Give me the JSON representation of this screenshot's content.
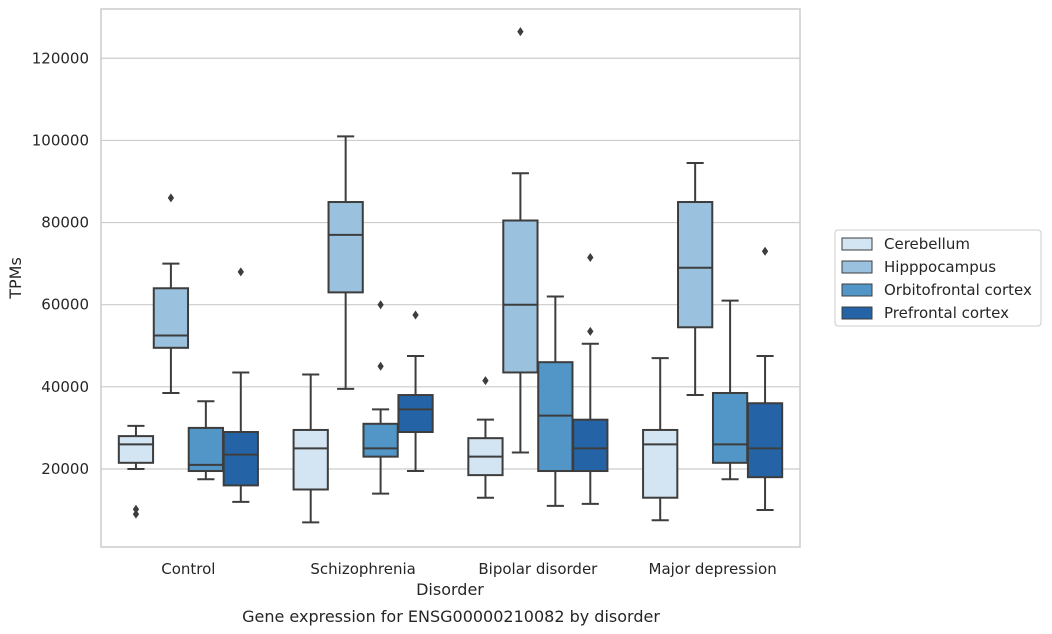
{
  "chart_data": {
    "type": "box",
    "xlabel": "Disorder",
    "ylabel": "TPMs",
    "caption": "Gene expression for ENSG00000210082 by disorder",
    "ylim": [
      1000,
      132000
    ],
    "yticks": [
      20000,
      40000,
      60000,
      80000,
      100000,
      120000
    ],
    "ytick_labels": [
      "20000",
      "40000",
      "60000",
      "80000",
      "100000",
      "120000"
    ],
    "grid": "horizontal",
    "legend_position": "right",
    "categories": [
      "Control",
      "Schizophrenia",
      "Bipolar disorder",
      "Major depression"
    ],
    "series": [
      {
        "name": "Cerebellum",
        "color": "#d3e4f3",
        "boxes": [
          {
            "whisker_low": 20000,
            "q1": 21500,
            "median": 26000,
            "q3": 28000,
            "whisker_high": 30500,
            "outliers": [
              9000,
              10200
            ]
          },
          {
            "whisker_low": 7000,
            "q1": 15000,
            "median": 25000,
            "q3": 29500,
            "whisker_high": 43000,
            "outliers": []
          },
          {
            "whisker_low": 13000,
            "q1": 18500,
            "median": 23000,
            "q3": 27500,
            "whisker_high": 32000,
            "outliers": [
              41500
            ]
          },
          {
            "whisker_low": 7500,
            "q1": 13000,
            "median": 26000,
            "q3": 29500,
            "whisker_high": 47000,
            "outliers": []
          }
        ]
      },
      {
        "name": "Hipppocampus",
        "color": "#9ac1de",
        "boxes": [
          {
            "whisker_low": 38500,
            "q1": 49500,
            "median": 52500,
            "q3": 64000,
            "whisker_high": 70000,
            "outliers": [
              86000
            ]
          },
          {
            "whisker_low": 39500,
            "q1": 63000,
            "median": 77000,
            "q3": 85000,
            "whisker_high": 101000,
            "outliers": []
          },
          {
            "whisker_low": 24000,
            "q1": 43500,
            "median": 60000,
            "q3": 80500,
            "whisker_high": 92000,
            "outliers": [
              126500
            ]
          },
          {
            "whisker_low": 38000,
            "q1": 54500,
            "median": 69000,
            "q3": 85000,
            "whisker_high": 94500,
            "outliers": []
          }
        ]
      },
      {
        "name": "Orbitofrontal cortex",
        "color": "#5296c7",
        "boxes": [
          {
            "whisker_low": 17500,
            "q1": 19500,
            "median": 21000,
            "q3": 30000,
            "whisker_high": 36500,
            "outliers": []
          },
          {
            "whisker_low": 14000,
            "q1": 23000,
            "median": 25000,
            "q3": 31000,
            "whisker_high": 34500,
            "outliers": [
              45000,
              60000
            ]
          },
          {
            "whisker_low": 11000,
            "q1": 19500,
            "median": 33000,
            "q3": 46000,
            "whisker_high": 62000,
            "outliers": []
          },
          {
            "whisker_low": 17500,
            "q1": 21500,
            "median": 26000,
            "q3": 38500,
            "whisker_high": 61000,
            "outliers": []
          }
        ]
      },
      {
        "name": "Prefrontal cortex",
        "color": "#2464a6",
        "boxes": [
          {
            "whisker_low": 12000,
            "q1": 16000,
            "median": 23500,
            "q3": 29000,
            "whisker_high": 43500,
            "outliers": [
              68000
            ]
          },
          {
            "whisker_low": 19500,
            "q1": 29000,
            "median": 34500,
            "q3": 38000,
            "whisker_high": 47500,
            "outliers": [
              57500
            ]
          },
          {
            "whisker_low": 11500,
            "q1": 19500,
            "median": 25000,
            "q3": 32000,
            "whisker_high": 50500,
            "outliers": [
              53500,
              71500
            ]
          },
          {
            "whisker_low": 10000,
            "q1": 18000,
            "median": 25000,
            "q3": 36000,
            "whisker_high": 47500,
            "outliers": [
              73000
            ]
          }
        ]
      }
    ]
  }
}
